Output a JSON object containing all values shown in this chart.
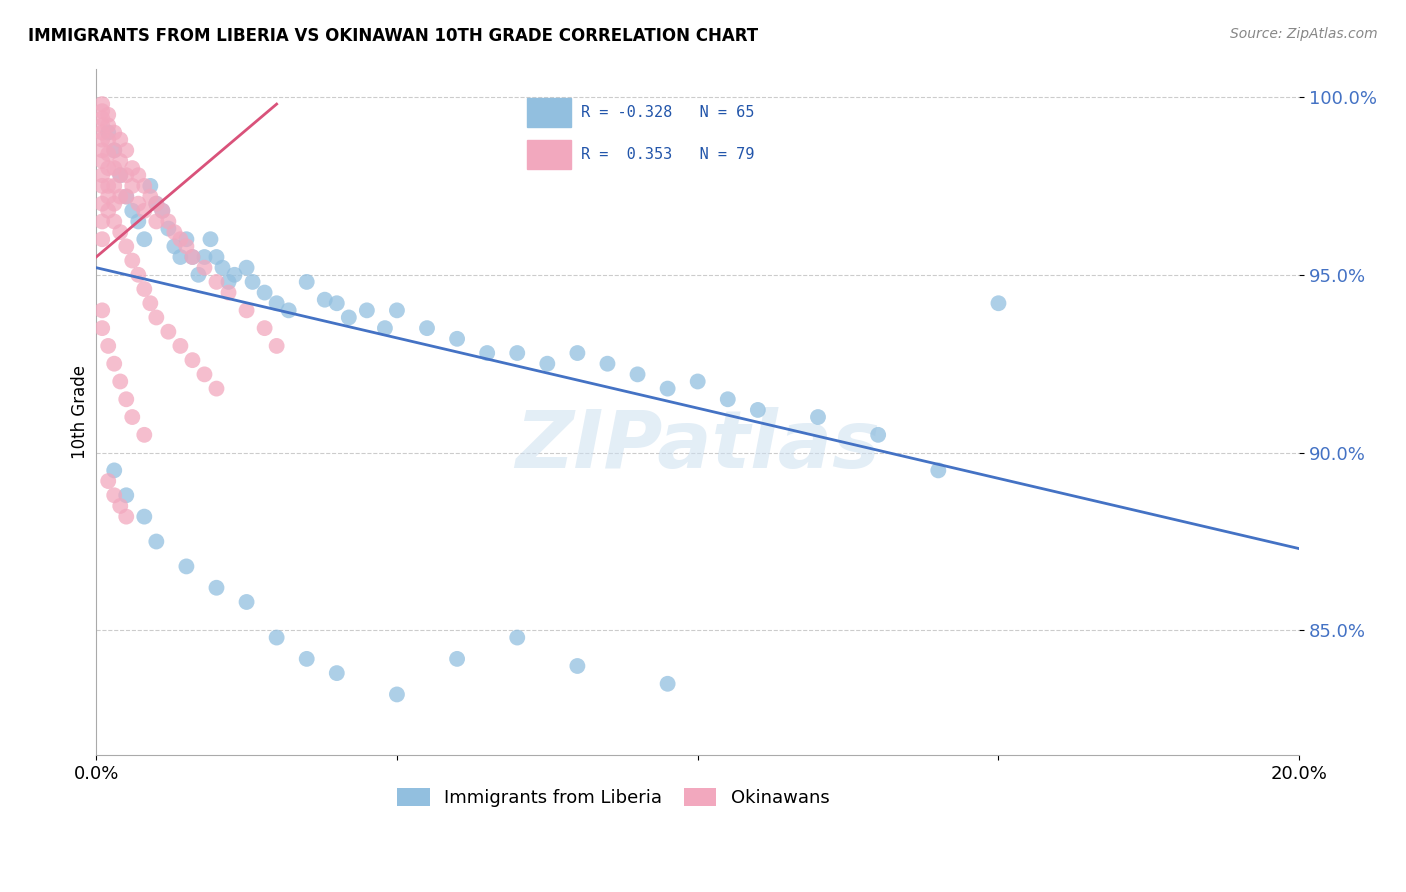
{
  "title": "IMMIGRANTS FROM LIBERIA VS OKINAWAN 10TH GRADE CORRELATION CHART",
  "source": "Source: ZipAtlas.com",
  "ylabel": "10th Grade",
  "xlim": [
    0.0,
    0.2
  ],
  "ylim": [
    0.815,
    1.008
  ],
  "xticks": [
    0.0,
    0.05,
    0.1,
    0.15,
    0.2
  ],
  "xtick_labels": [
    "0.0%",
    "",
    "",
    "",
    "20.0%"
  ],
  "ytick_positions": [
    0.85,
    0.9,
    0.95,
    1.0
  ],
  "ytick_labels": [
    "85.0%",
    "90.0%",
    "95.0%",
    "100.0%"
  ],
  "blue_color": "#92bfdf",
  "pink_color": "#f2a8be",
  "blue_line_color": "#4472c4",
  "pink_line_color": "#d9527a",
  "watermark": "ZIPatlas",
  "blue_line_x0": 0.0,
  "blue_line_y0": 0.952,
  "blue_line_x1": 0.2,
  "blue_line_y1": 0.873,
  "pink_line_x0": 0.0,
  "pink_line_y0": 0.955,
  "pink_line_x1": 0.03,
  "pink_line_y1": 0.998,
  "blue_dots_x": [
    0.002,
    0.003,
    0.004,
    0.005,
    0.006,
    0.007,
    0.008,
    0.009,
    0.01,
    0.011,
    0.012,
    0.013,
    0.014,
    0.015,
    0.016,
    0.017,
    0.018,
    0.019,
    0.02,
    0.021,
    0.022,
    0.023,
    0.025,
    0.026,
    0.028,
    0.03,
    0.032,
    0.035,
    0.038,
    0.04,
    0.042,
    0.045,
    0.048,
    0.05,
    0.055,
    0.06,
    0.065,
    0.07,
    0.075,
    0.08,
    0.085,
    0.09,
    0.095,
    0.1,
    0.105,
    0.11,
    0.12,
    0.13,
    0.14,
    0.15,
    0.003,
    0.005,
    0.008,
    0.01,
    0.015,
    0.02,
    0.025,
    0.03,
    0.035,
    0.04,
    0.05,
    0.06,
    0.07,
    0.08,
    0.095
  ],
  "blue_dots_y": [
    0.99,
    0.985,
    0.978,
    0.972,
    0.968,
    0.965,
    0.96,
    0.975,
    0.97,
    0.968,
    0.963,
    0.958,
    0.955,
    0.96,
    0.955,
    0.95,
    0.955,
    0.96,
    0.955,
    0.952,
    0.948,
    0.95,
    0.952,
    0.948,
    0.945,
    0.942,
    0.94,
    0.948,
    0.943,
    0.942,
    0.938,
    0.94,
    0.935,
    0.94,
    0.935,
    0.932,
    0.928,
    0.928,
    0.925,
    0.928,
    0.925,
    0.922,
    0.918,
    0.92,
    0.915,
    0.912,
    0.91,
    0.905,
    0.895,
    0.942,
    0.895,
    0.888,
    0.882,
    0.875,
    0.868,
    0.862,
    0.858,
    0.848,
    0.842,
    0.838,
    0.832,
    0.842,
    0.848,
    0.84,
    0.835
  ],
  "pink_dots_x": [
    0.001,
    0.001,
    0.001,
    0.001,
    0.001,
    0.001,
    0.001,
    0.001,
    0.001,
    0.001,
    0.001,
    0.002,
    0.002,
    0.002,
    0.002,
    0.002,
    0.002,
    0.003,
    0.003,
    0.003,
    0.003,
    0.003,
    0.004,
    0.004,
    0.004,
    0.004,
    0.005,
    0.005,
    0.005,
    0.006,
    0.006,
    0.007,
    0.007,
    0.008,
    0.008,
    0.009,
    0.01,
    0.01,
    0.011,
    0.012,
    0.013,
    0.014,
    0.015,
    0.016,
    0.018,
    0.02,
    0.022,
    0.025,
    0.028,
    0.03,
    0.001,
    0.001,
    0.002,
    0.002,
    0.003,
    0.004,
    0.005,
    0.006,
    0.007,
    0.008,
    0.009,
    0.01,
    0.012,
    0.014,
    0.016,
    0.018,
    0.02,
    0.001,
    0.001,
    0.002,
    0.003,
    0.004,
    0.005,
    0.006,
    0.008,
    0.002,
    0.003,
    0.004,
    0.005
  ],
  "pink_dots_y": [
    0.998,
    0.996,
    0.994,
    0.992,
    0.99,
    0.988,
    0.985,
    0.982,
    0.978,
    0.975,
    0.97,
    0.995,
    0.992,
    0.988,
    0.984,
    0.98,
    0.975,
    0.99,
    0.985,
    0.98,
    0.975,
    0.97,
    0.988,
    0.982,
    0.978,
    0.972,
    0.985,
    0.978,
    0.972,
    0.98,
    0.975,
    0.978,
    0.97,
    0.975,
    0.968,
    0.972,
    0.97,
    0.965,
    0.968,
    0.965,
    0.962,
    0.96,
    0.958,
    0.955,
    0.952,
    0.948,
    0.945,
    0.94,
    0.935,
    0.93,
    0.965,
    0.96,
    0.972,
    0.968,
    0.965,
    0.962,
    0.958,
    0.954,
    0.95,
    0.946,
    0.942,
    0.938,
    0.934,
    0.93,
    0.926,
    0.922,
    0.918,
    0.94,
    0.935,
    0.93,
    0.925,
    0.92,
    0.915,
    0.91,
    0.905,
    0.892,
    0.888,
    0.885,
    0.882
  ]
}
